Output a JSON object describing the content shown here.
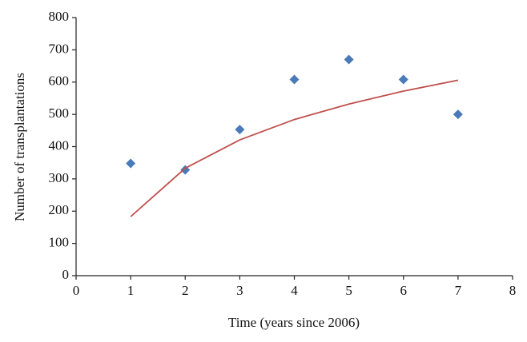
{
  "chart_data": {
    "type": "scatter",
    "x_label": "Time (years since 2006)",
    "y_label": "Number of transplantations",
    "x": [
      1,
      2,
      3,
      4,
      5,
      6,
      7
    ],
    "series": [
      {
        "type": "scatter",
        "color": "#4a7ab8",
        "values": [
          348,
          328,
          453,
          608,
          670,
          608,
          500
        ]
      },
      {
        "type": "line",
        "color": "#c0504d",
        "values": [
          183,
          333,
          421,
          484,
          532,
          572,
          606
        ]
      }
    ],
    "xlim": [
      0,
      8
    ],
    "xticks": [
      0,
      1,
      2,
      3,
      4,
      5,
      6,
      7,
      8
    ],
    "ylim": [
      0,
      800
    ],
    "yticks": [
      0,
      100,
      200,
      300,
      400,
      500,
      600,
      700,
      800
    ],
    "grid": false
  }
}
